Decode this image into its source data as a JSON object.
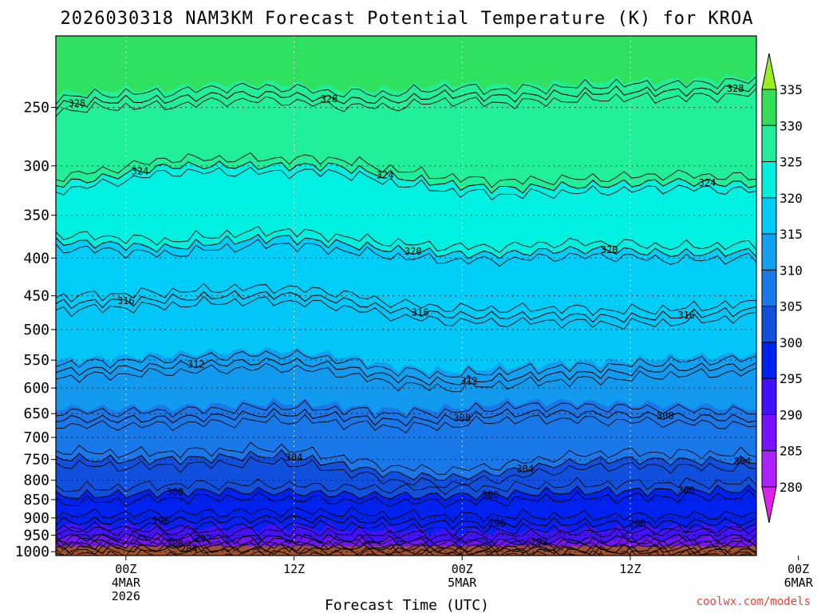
{
  "chart_data": {
    "type": "heatmap",
    "title": "2026030318 NAM3KM Forecast Potential Temperature (K) for KROA",
    "xlabel": "Forecast Time (UTC)",
    "ylabel": "",
    "y_axis": {
      "scale": "pressure (hPa), inverted",
      "ticks": [
        250,
        300,
        350,
        400,
        450,
        500,
        550,
        600,
        650,
        700,
        750,
        800,
        850,
        900,
        950,
        1000
      ],
      "ylim": [
        1000,
        200
      ]
    },
    "x_axis": {
      "range_hours": [
        -5,
        45
      ],
      "ticks": [
        {
          "hour": 0,
          "lines": [
            "00Z",
            "4MAR",
            "2026"
          ]
        },
        {
          "hour": 12,
          "lines": [
            "12Z"
          ]
        },
        {
          "hour": 24,
          "lines": [
            "00Z",
            "5MAR"
          ]
        },
        {
          "hour": 36,
          "lines": [
            "12Z"
          ]
        },
        {
          "hour": 48,
          "lines": [
            "00Z",
            "6MAR"
          ]
        }
      ]
    },
    "colorbar": {
      "levels": [
        280,
        285,
        290,
        295,
        300,
        305,
        310,
        315,
        320,
        325,
        330,
        335
      ],
      "colors": [
        "#dd22ee",
        "#aa22ff",
        "#7711ff",
        "#4411ff",
        "#0022ee",
        "#1150dd",
        "#1a78e8",
        "#12a0f0",
        "#00ccf8",
        "#00f0e0",
        "#22ee99",
        "#33dd55",
        "#99ee22"
      ]
    },
    "contours": [
      {
        "level": 284,
        "p": [
          992,
          991,
          990,
          992,
          996,
          998,
          999,
          999,
          999,
          999,
          999,
          999,
          999
        ],
        "label_hour": 4.5
      },
      {
        "level": 288,
        "p": [
          978,
          977,
          976,
          980,
          984,
          985,
          986,
          989,
          991,
          992,
          993,
          992,
          990
        ],
        "label_hour": 3.5
      },
      {
        "level": 292,
        "p": [
          955,
          956,
          958,
          962,
          958,
          962,
          968,
          972,
          972,
          968,
          962,
          958,
          955
        ],
        "label_hour": 5.5
      },
      {
        "level": 296,
        "p": [
          913,
          910,
          908,
          905,
          900,
          905,
          912,
          915,
          915,
          915,
          916,
          915,
          912
        ],
        "label_hour": 2.5
      },
      {
        "level": 300,
        "p": [
          842,
          838,
          830,
          828,
          830,
          836,
          840,
          840,
          836,
          830,
          828,
          826,
          826
        ],
        "label_hour": 3.5
      },
      {
        "level": 304,
        "p": [
          745,
          752,
          750,
          745,
          740,
          760,
          785,
          795,
          780,
          760,
          750,
          752,
          755
        ],
        "label_hour": 12.0
      },
      {
        "level": 308,
        "p": [
          660,
          662,
          660,
          655,
          650,
          655,
          665,
          662,
          650,
          648,
          652,
          655,
          662
        ],
        "label_hour": 38.5
      },
      {
        "level": 312,
        "p": [
          570,
          565,
          560,
          555,
          552,
          560,
          580,
          590,
          582,
          575,
          572,
          565,
          560
        ],
        "label_hour": 5.0
      },
      {
        "level": 316,
        "p": [
          462,
          458,
          455,
          450,
          448,
          455,
          470,
          478,
          480,
          478,
          482,
          480,
          470
        ],
        "label_hour": 0.0
      },
      {
        "level": 320,
        "p": [
          380,
          383,
          388,
          380,
          375,
          382,
          390,
          395,
          395,
          390,
          390,
          395,
          392
        ],
        "label_hour": 34.5
      },
      {
        "level": 324,
        "p": [
          318,
          310,
          300,
          300,
          300,
          300,
          310,
          318,
          322,
          320,
          318,
          315,
          318
        ],
        "label_hour": 1.0
      },
      {
        "level": 328,
        "p": [
          248,
          245,
          244,
          240,
          240,
          244,
          245,
          240,
          242,
          240,
          238,
          238,
          235
        ],
        "label_hour": -3.5
      }
    ],
    "contour_hours": [
      -5,
      -1,
      3,
      7,
      11,
      15,
      19,
      23,
      27,
      31,
      35,
      39,
      45
    ],
    "contour_label_map": [
      {
        "level": 328,
        "hour": 14.5
      },
      {
        "level": 328,
        "hour": 43.5
      },
      {
        "level": 324,
        "hour": 18.5
      },
      {
        "level": 324,
        "hour": 41.5
      },
      {
        "level": 320,
        "hour": 20.5
      },
      {
        "level": 316,
        "hour": 21.0
      },
      {
        "level": 316,
        "hour": 40.0
      },
      {
        "level": 312,
        "hour": 24.5
      },
      {
        "level": 308,
        "hour": 24.0
      },
      {
        "level": 304,
        "hour": 44.0
      },
      {
        "level": 304,
        "hour": 28.5
      },
      {
        "level": 300,
        "hour": 26.0
      },
      {
        "level": 300,
        "hour": 40.0
      },
      {
        "level": 296,
        "hour": 26.5
      },
      {
        "level": 296,
        "hour": 36.5
      },
      {
        "level": 292,
        "hour": 29.5
      }
    ]
  },
  "credit": "coolwx.com/models",
  "ground_color": "#a0522d"
}
